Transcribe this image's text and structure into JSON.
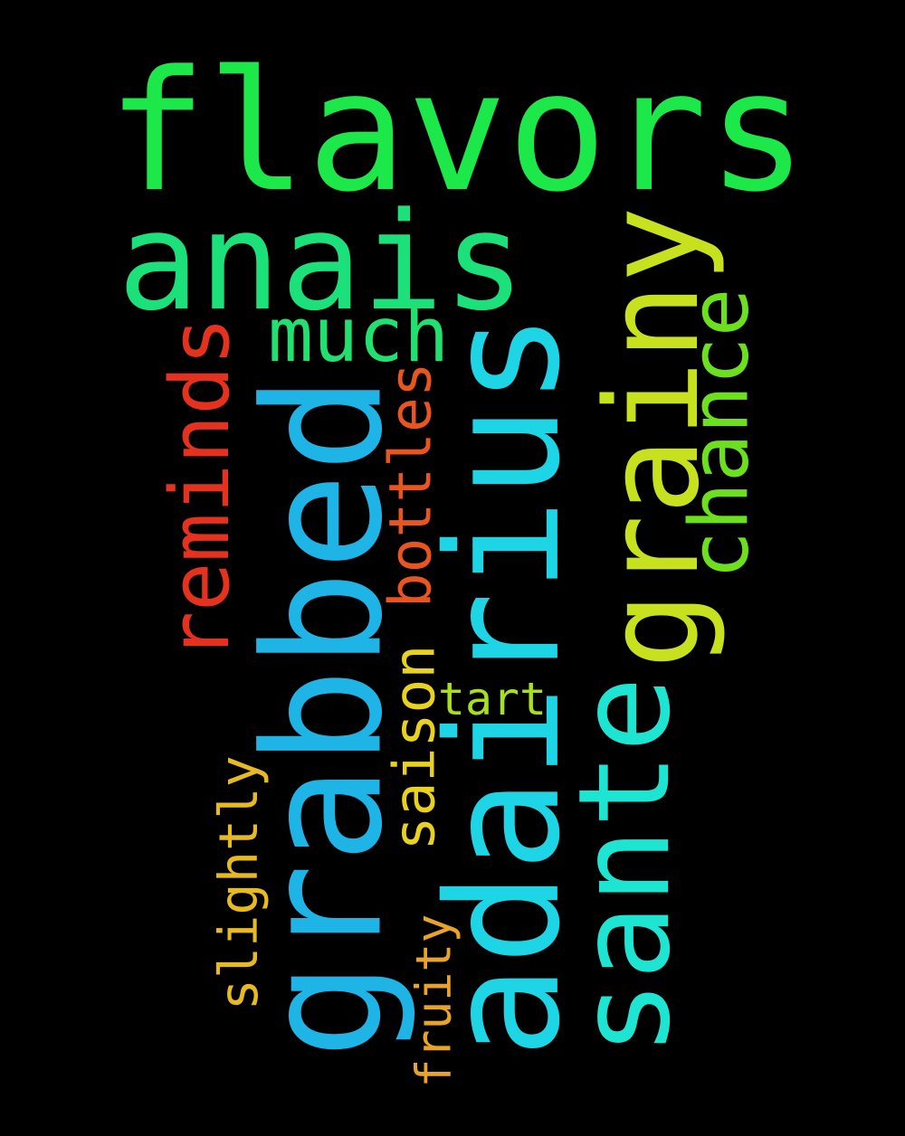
{
  "words": [
    {
      "id": "flavors",
      "text": "flavors",
      "color": "#1DE84A",
      "rotated": false
    },
    {
      "id": "anais",
      "text": "anais",
      "color": "#1CE07A",
      "rotated": false
    },
    {
      "id": "much",
      "text": "much",
      "color": "#22E070",
      "rotated": false
    },
    {
      "id": "grabbed",
      "text": "grabbed",
      "color": "#1EB4E6",
      "rotated": true
    },
    {
      "id": "adairius",
      "text": "adairius",
      "color": "#1ED5E5",
      "rotated": true
    },
    {
      "id": "grainy",
      "text": "grainy",
      "color": "#C8E11E",
      "rotated": true
    },
    {
      "id": "sante",
      "text": "sante",
      "color": "#1EE4D2",
      "rotated": true
    },
    {
      "id": "chance",
      "text": "chance",
      "color": "#6CE01E",
      "rotated": true
    },
    {
      "id": "reminds",
      "text": "reminds",
      "color": "#E4321E",
      "rotated": true
    },
    {
      "id": "bottles",
      "text": "bottles",
      "color": "#E8551E",
      "rotated": true
    },
    {
      "id": "saison",
      "text": "saison",
      "color": "#E8D21E",
      "rotated": true
    },
    {
      "id": "tart",
      "text": "tart",
      "color": "#A6E01E",
      "rotated": false
    },
    {
      "id": "slightly",
      "text": "slightly",
      "color": "#E8BA22",
      "rotated": true
    },
    {
      "id": "fruity",
      "text": "fruity",
      "color": "#E8A42A",
      "rotated": true
    }
  ]
}
